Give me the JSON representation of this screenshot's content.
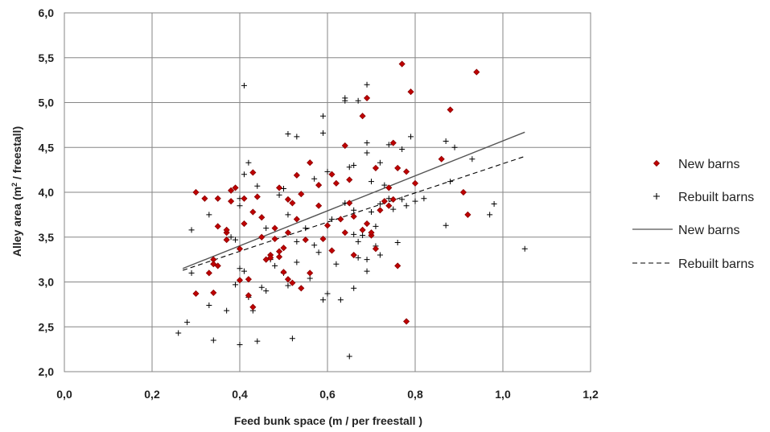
{
  "chart_data": {
    "type": "scatter",
    "title": "",
    "xlabel": "Feed bunk space (m / per freestall )",
    "ylabel_prefix": "Alley area  (m",
    "ylabel_sup": "2",
    "ylabel_suffix": " / freestall)",
    "xlim": [
      0.0,
      1.2
    ],
    "ylim": [
      2.0,
      6.0
    ],
    "xticks": [
      0.0,
      0.2,
      0.4,
      0.6,
      0.8,
      1.0,
      1.2
    ],
    "xtick_labels": [
      "0,0",
      "0,2",
      "0,4",
      "0,6",
      "0,8",
      "1,0",
      "1,2"
    ],
    "yticks": [
      2.0,
      2.5,
      3.0,
      3.5,
      4.0,
      4.5,
      5.0,
      5.5,
      6.0
    ],
    "ytick_labels": [
      "2,0",
      "2,5",
      "3,0",
      "3,5",
      "4,0",
      "4,5",
      "5,0",
      "5,5",
      "6,0"
    ],
    "grid": true,
    "legend_position": "right",
    "series": [
      {
        "name": "New barns",
        "kind": "scatter",
        "marker": "diamond",
        "color": "#c00000",
        "points": [
          [
            0.3,
            4.0
          ],
          [
            0.3,
            2.87
          ],
          [
            0.32,
            3.93
          ],
          [
            0.33,
            3.1
          ],
          [
            0.34,
            3.25
          ],
          [
            0.34,
            3.2
          ],
          [
            0.34,
            2.88
          ],
          [
            0.35,
            3.18
          ],
          [
            0.35,
            3.62
          ],
          [
            0.35,
            3.93
          ],
          [
            0.37,
            3.47
          ],
          [
            0.37,
            3.55
          ],
          [
            0.37,
            3.58
          ],
          [
            0.38,
            3.9
          ],
          [
            0.38,
            4.02
          ],
          [
            0.39,
            4.05
          ],
          [
            0.4,
            3.37
          ],
          [
            0.4,
            3.02
          ],
          [
            0.41,
            3.93
          ],
          [
            0.41,
            3.65
          ],
          [
            0.42,
            3.03
          ],
          [
            0.42,
            2.85
          ],
          [
            0.43,
            3.78
          ],
          [
            0.43,
            4.22
          ],
          [
            0.43,
            2.72
          ],
          [
            0.44,
            3.95
          ],
          [
            0.45,
            3.72
          ],
          [
            0.45,
            3.5
          ],
          [
            0.46,
            3.25
          ],
          [
            0.47,
            3.3
          ],
          [
            0.47,
            3.27
          ],
          [
            0.48,
            3.6
          ],
          [
            0.48,
            3.48
          ],
          [
            0.49,
            3.28
          ],
          [
            0.49,
            3.34
          ],
          [
            0.49,
            4.05
          ],
          [
            0.5,
            3.11
          ],
          [
            0.5,
            3.38
          ],
          [
            0.51,
            3.92
          ],
          [
            0.51,
            3.55
          ],
          [
            0.51,
            3.03
          ],
          [
            0.52,
            3.88
          ],
          [
            0.52,
            2.99
          ],
          [
            0.53,
            4.19
          ],
          [
            0.53,
            3.7
          ],
          [
            0.54,
            3.98
          ],
          [
            0.54,
            2.93
          ],
          [
            0.55,
            3.47
          ],
          [
            0.56,
            3.1
          ],
          [
            0.56,
            4.33
          ],
          [
            0.58,
            3.85
          ],
          [
            0.58,
            4.08
          ],
          [
            0.59,
            3.48
          ],
          [
            0.6,
            3.63
          ],
          [
            0.61,
            3.35
          ],
          [
            0.61,
            4.2
          ],
          [
            0.62,
            4.1
          ],
          [
            0.64,
            4.52
          ],
          [
            0.64,
            3.55
          ],
          [
            0.65,
            3.88
          ],
          [
            0.65,
            4.14
          ],
          [
            0.66,
            3.73
          ],
          [
            0.66,
            3.3
          ],
          [
            0.68,
            4.85
          ],
          [
            0.68,
            3.58
          ],
          [
            0.69,
            3.65
          ],
          [
            0.69,
            5.05
          ],
          [
            0.7,
            3.52
          ],
          [
            0.7,
            3.55
          ],
          [
            0.71,
            3.37
          ],
          [
            0.72,
            3.8
          ],
          [
            0.73,
            3.9
          ],
          [
            0.74,
            3.85
          ],
          [
            0.74,
            4.05
          ],
          [
            0.75,
            3.92
          ],
          [
            0.75,
            4.55
          ],
          [
            0.76,
            4.27
          ],
          [
            0.76,
            3.18
          ],
          [
            0.77,
            5.43
          ],
          [
            0.78,
            4.23
          ],
          [
            0.78,
            2.56
          ],
          [
            0.79,
            5.12
          ],
          [
            0.8,
            4.1
          ],
          [
            0.86,
            4.37
          ],
          [
            0.88,
            4.92
          ],
          [
            0.91,
            4.0
          ],
          [
            0.92,
            3.75
          ],
          [
            0.94,
            5.34
          ],
          [
            0.71,
            4.27
          ],
          [
            0.63,
            3.7
          ]
        ]
      },
      {
        "name": "Rebuilt barns",
        "kind": "scatter",
        "marker": "plus",
        "color": "#000000",
        "points": [
          [
            0.26,
            2.43
          ],
          [
            0.28,
            2.55
          ],
          [
            0.29,
            3.58
          ],
          [
            0.29,
            3.1
          ],
          [
            0.33,
            3.75
          ],
          [
            0.33,
            2.74
          ],
          [
            0.34,
            2.35
          ],
          [
            0.37,
            2.68
          ],
          [
            0.38,
            3.5
          ],
          [
            0.39,
            3.47
          ],
          [
            0.39,
            2.97
          ],
          [
            0.4,
            3.93
          ],
          [
            0.4,
            3.85
          ],
          [
            0.4,
            3.15
          ],
          [
            0.4,
            2.3
          ],
          [
            0.41,
            5.19
          ],
          [
            0.41,
            4.2
          ],
          [
            0.41,
            3.12
          ],
          [
            0.42,
            4.33
          ],
          [
            0.42,
            2.83
          ],
          [
            0.43,
            2.68
          ],
          [
            0.44,
            4.07
          ],
          [
            0.44,
            2.34
          ],
          [
            0.45,
            3.72
          ],
          [
            0.45,
            2.94
          ],
          [
            0.46,
            3.6
          ],
          [
            0.46,
            2.9
          ],
          [
            0.47,
            3.25
          ],
          [
            0.48,
            3.18
          ],
          [
            0.49,
            3.97
          ],
          [
            0.5,
            4.04
          ],
          [
            0.5,
            3.1
          ],
          [
            0.51,
            4.65
          ],
          [
            0.51,
            3.75
          ],
          [
            0.51,
            2.96
          ],
          [
            0.52,
            2.37
          ],
          [
            0.53,
            4.62
          ],
          [
            0.53,
            3.45
          ],
          [
            0.53,
            3.22
          ],
          [
            0.55,
            3.6
          ],
          [
            0.56,
            3.04
          ],
          [
            0.57,
            4.15
          ],
          [
            0.57,
            3.41
          ],
          [
            0.58,
            3.33
          ],
          [
            0.59,
            4.85
          ],
          [
            0.59,
            4.66
          ],
          [
            0.59,
            2.8
          ],
          [
            0.6,
            4.23
          ],
          [
            0.6,
            2.87
          ],
          [
            0.61,
            3.7
          ],
          [
            0.62,
            3.2
          ],
          [
            0.63,
            2.8
          ],
          [
            0.64,
            5.05
          ],
          [
            0.64,
            5.02
          ],
          [
            0.64,
            3.88
          ],
          [
            0.65,
            4.28
          ],
          [
            0.65,
            2.17
          ],
          [
            0.66,
            4.3
          ],
          [
            0.66,
            3.53
          ],
          [
            0.66,
            2.93
          ],
          [
            0.67,
            5.02
          ],
          [
            0.67,
            3.45
          ],
          [
            0.67,
            3.27
          ],
          [
            0.68,
            3.52
          ],
          [
            0.69,
            5.2
          ],
          [
            0.69,
            4.55
          ],
          [
            0.69,
            4.44
          ],
          [
            0.69,
            3.25
          ],
          [
            0.69,
            3.12
          ],
          [
            0.7,
            4.12
          ],
          [
            0.7,
            3.78
          ],
          [
            0.71,
            3.62
          ],
          [
            0.71,
            3.4
          ],
          [
            0.72,
            4.33
          ],
          [
            0.72,
            3.87
          ],
          [
            0.72,
            3.3
          ],
          [
            0.73,
            4.08
          ],
          [
            0.74,
            4.53
          ],
          [
            0.74,
            3.93
          ],
          [
            0.75,
            3.81
          ],
          [
            0.76,
            3.44
          ],
          [
            0.77,
            4.48
          ],
          [
            0.77,
            3.92
          ],
          [
            0.78,
            3.85
          ],
          [
            0.79,
            4.62
          ],
          [
            0.8,
            3.9
          ],
          [
            0.82,
            3.93
          ],
          [
            0.87,
            4.57
          ],
          [
            0.87,
            3.63
          ],
          [
            0.88,
            4.12
          ],
          [
            0.89,
            4.5
          ],
          [
            0.93,
            4.37
          ],
          [
            0.97,
            3.75
          ],
          [
            0.98,
            3.87
          ],
          [
            1.05,
            3.37
          ],
          [
            0.66,
            3.8
          ]
        ]
      },
      {
        "name": "New barns",
        "kind": "line",
        "style": "solid",
        "color": "#555555",
        "points": [
          [
            0.27,
            3.15
          ],
          [
            1.05,
            4.67
          ]
        ]
      },
      {
        "name": "Rebuilt barns",
        "kind": "line",
        "style": "dashed",
        "color": "#000000",
        "points": [
          [
            0.27,
            3.13
          ],
          [
            1.05,
            4.4
          ]
        ]
      }
    ]
  }
}
